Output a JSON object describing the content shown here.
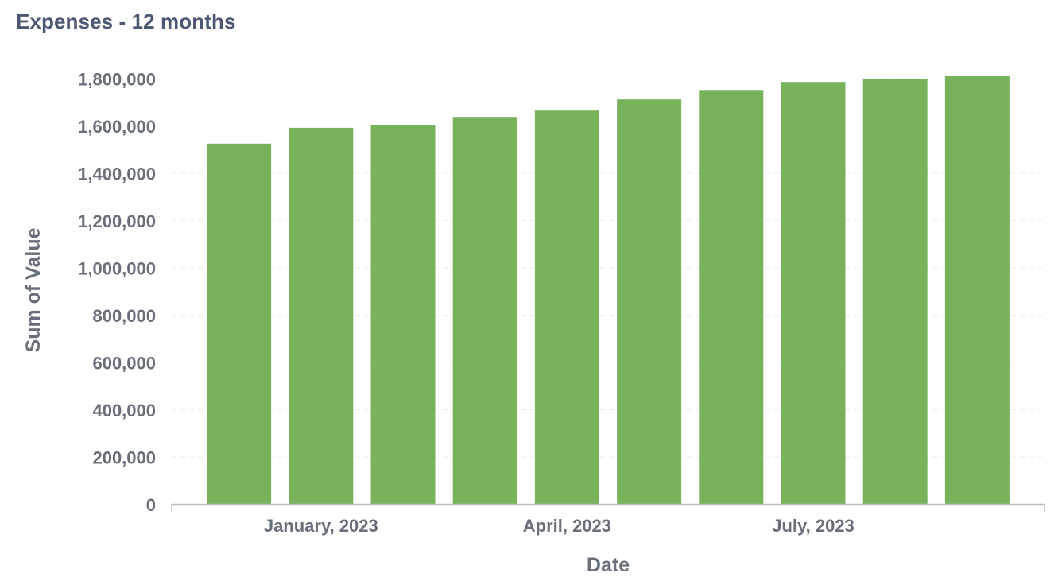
{
  "card": {
    "title": "Expenses - 12 months"
  },
  "colors": {
    "bar": "#78b35c",
    "axis_text": "#696e7b",
    "title_text": "#4c5773",
    "gridline": "#ebedf0",
    "axis_line": "#b7bcc5"
  },
  "chart_data": {
    "type": "bar",
    "categories": [
      "2022-12",
      "2023-01",
      "2023-02",
      "2023-03",
      "2023-04",
      "2023-05",
      "2023-06",
      "2023-07",
      "2023-08",
      "2023-09"
    ],
    "values": [
      1525000,
      1592000,
      1605000,
      1638000,
      1665000,
      1712000,
      1752000,
      1786000,
      1800000,
      1812000
    ],
    "x_tick_labels": [
      {
        "category": "2023-01",
        "label": "January, 2023"
      },
      {
        "category": "2023-04",
        "label": "April, 2023"
      },
      {
        "category": "2023-07",
        "label": "July, 2023"
      }
    ],
    "y_ticks": [
      0,
      200000,
      400000,
      600000,
      800000,
      1000000,
      1200000,
      1400000,
      1600000,
      1800000
    ],
    "y_tick_labels": [
      "0",
      "200,000",
      "400,000",
      "600,000",
      "800,000",
      "1,000,000",
      "1,200,000",
      "1,400,000",
      "1,600,000",
      "1,800,000"
    ],
    "ylim": [
      0,
      1800000
    ],
    "xlabel": "Date",
    "ylabel": "Sum of Value",
    "grid": true,
    "legend": "none"
  }
}
